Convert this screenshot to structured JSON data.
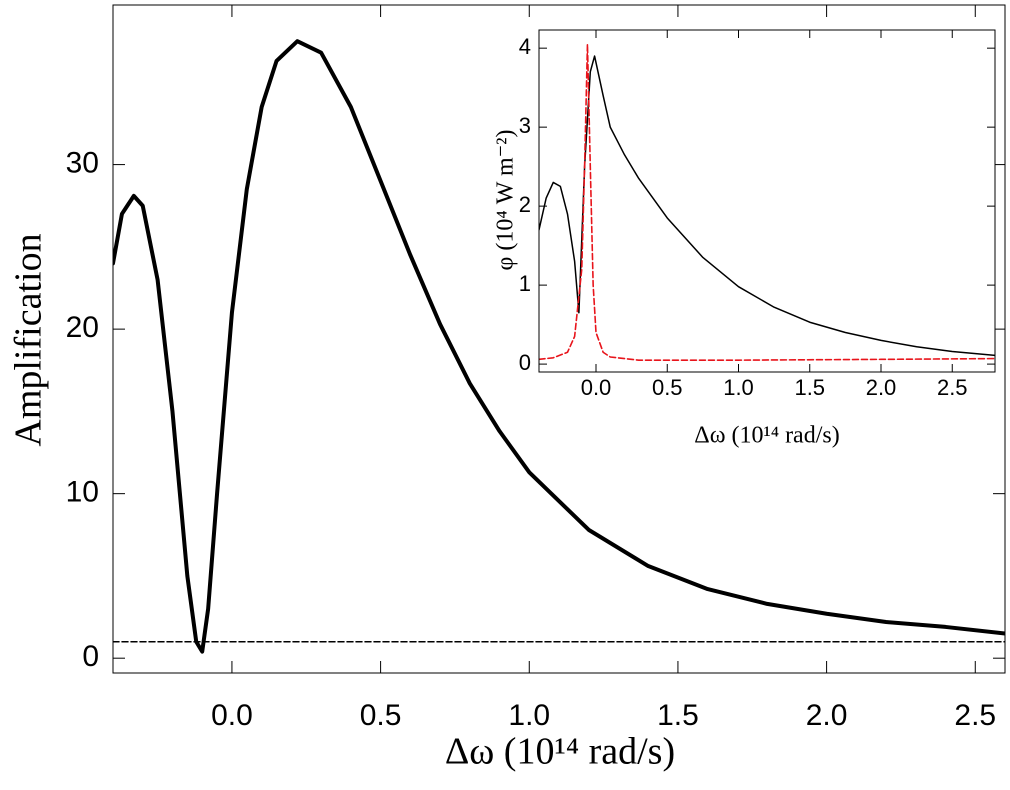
{
  "chart_data": [
    {
      "type": "line",
      "x_label": "Δω (10¹⁴ rad/s)",
      "y_label": "Amplification",
      "xlim": [
        -0.4,
        2.6
      ],
      "ylim": [
        -0.9,
        39.7
      ],
      "xticks": [
        {
          "value": 0,
          "label": "0.0"
        },
        0.5,
        {
          "value": 1,
          "label": "1.0"
        },
        1.5,
        {
          "value": 2,
          "label": "2.0"
        },
        2.5
      ],
      "yticks": [
        0,
        10,
        20,
        30
      ],
      "series": [
        {
          "color": "#000000",
          "dashed": false,
          "x": [
            -0.4,
            -0.37,
            -0.33,
            -0.3,
            -0.25,
            -0.2,
            -0.15,
            -0.12,
            -0.1,
            -0.08,
            -0.05,
            0,
            0.05,
            0.1,
            0.15,
            0.22,
            0.3,
            0.4,
            0.5,
            0.6,
            0.7,
            0.8,
            0.9,
            1.0,
            1.2,
            1.4,
            1.6,
            1.8,
            2.0,
            2.2,
            2.4,
            2.6
          ],
          "values": [
            24,
            27,
            28.1,
            27.5,
            23,
            15,
            5,
            1,
            0.4,
            3,
            10,
            21,
            28.5,
            33.5,
            36.3,
            37.5,
            36.8,
            33.5,
            29,
            24.5,
            20.3,
            16.7,
            13.8,
            11.3,
            7.8,
            5.6,
            4.2,
            3.3,
            2.7,
            2.2,
            1.9,
            1.5
          ]
        },
        {
          "color": "#000000",
          "dashed": true,
          "x": [
            -0.4,
            2.6
          ],
          "values": [
            1,
            1
          ]
        }
      ]
    },
    {
      "type": "line",
      "x_label": "Δω (10¹⁴ rad/s)",
      "y_label": "φ (10⁴ W m⁻²)",
      "xlim": [
        -0.4,
        2.8
      ],
      "ylim": [
        -0.1,
        4.23
      ],
      "xticks": [
        {
          "value": 0,
          "label": "0.0"
        },
        0.5,
        {
          "value": 1,
          "label": "1.0"
        },
        1.5,
        {
          "value": 2,
          "label": "2.0"
        },
        2.5
      ],
      "yticks": [
        0,
        1,
        2,
        3,
        4
      ],
      "series": [
        {
          "color": "#000000",
          "dashed": false,
          "x": [
            -0.4,
            -0.35,
            -0.3,
            -0.25,
            -0.2,
            -0.15,
            -0.12,
            -0.08,
            -0.04,
            -0.01,
            0.05,
            0.1,
            0.2,
            0.3,
            0.5,
            0.75,
            1.0,
            1.25,
            1.5,
            1.75,
            2.0,
            2.25,
            2.5,
            2.8
          ],
          "values": [
            1.7,
            2.1,
            2.3,
            2.25,
            1.9,
            1.3,
            0.65,
            2.5,
            3.7,
            3.9,
            3.4,
            3.0,
            2.65,
            2.35,
            1.85,
            1.35,
            0.98,
            0.72,
            0.53,
            0.4,
            0.3,
            0.22,
            0.16,
            0.11
          ]
        },
        {
          "color": "#e8141b",
          "dashed": true,
          "x": [
            -0.4,
            -0.3,
            -0.2,
            -0.15,
            -0.1,
            -0.08,
            -0.06,
            -0.04,
            -0.02,
            0,
            0.05,
            0.1,
            0.3,
            1.0,
            2.0,
            2.8
          ],
          "values": [
            0.06,
            0.08,
            0.15,
            0.35,
            1.2,
            2.5,
            4.05,
            2.5,
            1.0,
            0.4,
            0.15,
            0.09,
            0.05,
            0.05,
            0.06,
            0.07
          ]
        }
      ]
    }
  ]
}
